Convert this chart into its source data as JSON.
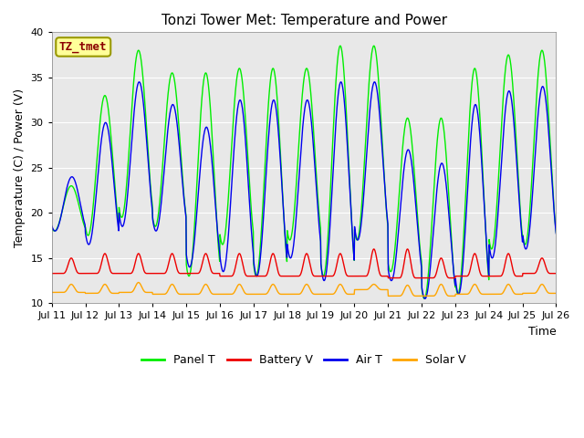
{
  "title": "Tonzi Tower Met: Temperature and Power",
  "xlabel": "Time",
  "ylabel": "Temperature (C) / Power (V)",
  "ylim": [
    10,
    40
  ],
  "x_tick_labels": [
    "Jul 11",
    "Jul 12",
    "Jul 13",
    "Jul 14",
    "Jul 15",
    "Jul 16",
    "Jul 17",
    "Jul 18",
    "Jul 19",
    "Jul 20",
    "Jul 21",
    "Jul 22",
    "Jul 23",
    "Jul 24",
    "Jul 25",
    "Jul 26"
  ],
  "annotation_text": "TZ_tmet",
  "annotation_color": "#8B0000",
  "annotation_bg": "#FFFF99",
  "annotation_border": "#999900",
  "panel_t_color": "#00EE00",
  "air_t_color": "#0000EE",
  "battery_v_color": "#EE0000",
  "solar_v_color": "#FFA500",
  "bg_color": "#E8E8E8",
  "panel_t_label": "Panel T",
  "air_t_label": "Air T",
  "battery_v_label": "Battery V",
  "solar_v_label": "Solar V",
  "title_fontsize": 11,
  "legend_fontsize": 9,
  "tick_fontsize": 8,
  "ylabel_fontsize": 9,
  "xlabel_fontsize": 9,
  "panel_t_peaks": [
    23,
    33,
    38,
    35.5,
    35.5,
    36,
    36,
    36,
    38.5,
    38.5,
    30.5,
    30.5,
    36,
    37.5,
    38
  ],
  "panel_t_valleys": [
    18,
    17.5,
    19.5,
    18.5,
    13,
    16.5,
    13,
    17,
    13,
    17,
    13.5,
    10.5,
    11,
    16,
    16.5
  ],
  "air_t_peaks": [
    24,
    30,
    34.5,
    32,
    29.5,
    32.5,
    32.5,
    32.5,
    34.5,
    34.5,
    27,
    25.5,
    32,
    33.5,
    34
  ],
  "air_t_valleys": [
    18,
    16.5,
    18.5,
    18,
    14,
    13.5,
    13,
    15,
    12.5,
    17,
    12.5,
    10.5,
    11,
    15,
    16
  ],
  "battery_v_peaks": [
    15,
    15.5,
    15.5,
    15.5,
    15.5,
    15.5,
    15.5,
    15.5,
    15.5,
    16,
    16,
    15,
    15.5,
    15.5,
    15
  ],
  "battery_v_valleys": [
    13.3,
    13.3,
    13.3,
    13.3,
    13.3,
    13.0,
    13.0,
    13.0,
    13.0,
    13.0,
    12.8,
    12.8,
    13.0,
    13.0,
    13.3
  ],
  "solar_v_peaks": [
    12.1,
    12.1,
    12.3,
    12.1,
    12.1,
    12.1,
    12.1,
    12.1,
    12.1,
    12.1,
    12.0,
    12.1,
    12.1,
    12.1,
    12.1
  ],
  "solar_v_valleys": [
    11.2,
    11.1,
    11.2,
    11.0,
    11.0,
    11.0,
    11.0,
    11.0,
    11.0,
    11.5,
    10.8,
    10.8,
    11.0,
    11.0,
    11.1
  ]
}
